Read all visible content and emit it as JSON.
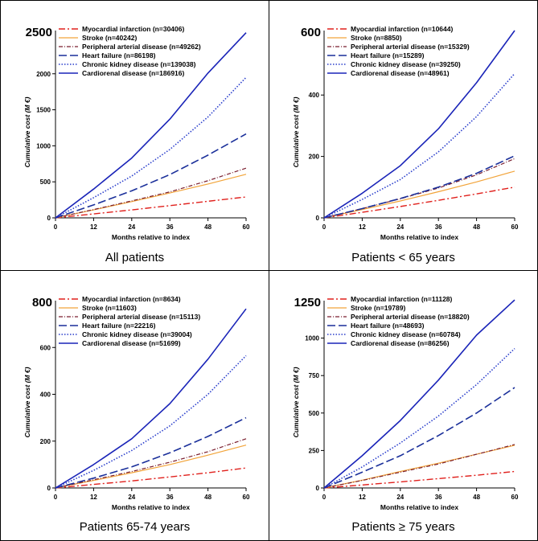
{
  "colors": {
    "myocardial": "#e0201c",
    "stroke": "#f2a43a",
    "peripheral": "#7a1e2e",
    "heart": "#1a2f9a",
    "ckd": "#2b3fcc",
    "cardiorenal": "#1a24b8"
  },
  "chart_data": [
    {
      "type": "line",
      "caption": "All patients",
      "xlabel": "Months relative to index",
      "ylabel": "Cumulative cost (M €)",
      "xlim": [
        0,
        60
      ],
      "x_ticks": [
        "0",
        "12",
        "24",
        "36",
        "48",
        "60"
      ],
      "ylim": [
        0,
        2600
      ],
      "y_ticks": [
        "0",
        "500",
        "1000",
        "1500",
        "2000"
      ],
      "y_top_label": "2500",
      "x": [
        0,
        12,
        24,
        36,
        48,
        60
      ],
      "series": [
        {
          "name": "Myocardial infarction (n=30406)",
          "values": [
            0,
            55,
            110,
            170,
            230,
            290
          ]
        },
        {
          "name": "Stroke (n=40242)",
          "values": [
            0,
            110,
            225,
            345,
            470,
            605
          ]
        },
        {
          "name": "Peripheral arterial disease (n=49262)",
          "values": [
            0,
            115,
            235,
            360,
            515,
            690
          ]
        },
        {
          "name": "Heart failure (n=86198)",
          "values": [
            0,
            180,
            375,
            600,
            870,
            1165
          ]
        },
        {
          "name": "Chronic kidney disease (n=139038)",
          "values": [
            0,
            280,
            580,
            950,
            1400,
            1950
          ]
        },
        {
          "name": "Cardiorenal disease (n=186916)",
          "values": [
            0,
            400,
            830,
            1370,
            2010,
            2570
          ]
        }
      ]
    },
    {
      "type": "line",
      "caption": "Patients < 65 years",
      "xlabel": "Months relative to index",
      "ylabel": "Cumulative cost (M €)",
      "xlim": [
        0,
        60
      ],
      "x_ticks": [
        "0",
        "12",
        "24",
        "36",
        "48",
        "60"
      ],
      "ylim": [
        0,
        610
      ],
      "y_ticks": [
        "0",
        "200",
        "400"
      ],
      "y_top_label": "600",
      "x": [
        0,
        12,
        24,
        36,
        48,
        60
      ],
      "series": [
        {
          "name": "Myocardial infarction (n=10644)",
          "values": [
            0,
            18,
            37,
            57,
            78,
            100
          ]
        },
        {
          "name": "Stroke (n=8850)",
          "values": [
            0,
            27,
            55,
            85,
            117,
            152
          ]
        },
        {
          "name": "Peripheral arterial disease (n=15329)",
          "values": [
            0,
            30,
            62,
            97,
            140,
            193
          ]
        },
        {
          "name": "Heart failure (n=15289)",
          "values": [
            0,
            30,
            63,
            100,
            145,
            202
          ]
        },
        {
          "name": "Chronic kidney disease (n=39250)",
          "values": [
            0,
            60,
            125,
            215,
            330,
            470
          ]
        },
        {
          "name": "Cardiorenal disease (n=48961)",
          "values": [
            0,
            80,
            170,
            290,
            440,
            610
          ]
        }
      ]
    },
    {
      "type": "line",
      "caption": "Patients 65-74 years",
      "xlabel": "Months relative to index",
      "ylabel": "Cumulative cost (M €)",
      "xlim": [
        0,
        60
      ],
      "x_ticks": [
        "0",
        "12",
        "24",
        "36",
        "48",
        "60"
      ],
      "ylim": [
        0,
        800
      ],
      "y_ticks": [
        "0",
        "200",
        "400",
        "600"
      ],
      "y_top_label": "800",
      "x": [
        0,
        12,
        24,
        36,
        48,
        60
      ],
      "series": [
        {
          "name": "Myocardial infarction (n=8634)",
          "values": [
            0,
            15,
            30,
            47,
            65,
            85
          ]
        },
        {
          "name": "Stroke (n=11603)",
          "values": [
            0,
            32,
            65,
            100,
            140,
            183
          ]
        },
        {
          "name": "Peripheral arterial disease (n=15113)",
          "values": [
            0,
            35,
            70,
            110,
            155,
            210
          ]
        },
        {
          "name": "Heart failure (n=22216)",
          "values": [
            0,
            42,
            90,
            150,
            220,
            300
          ]
        },
        {
          "name": "Chronic kidney disease (n=39004)",
          "values": [
            0,
            75,
            160,
            265,
            400,
            565
          ]
        },
        {
          "name": "Cardiorenal disease (n=51699)",
          "values": [
            0,
            100,
            210,
            360,
            550,
            765
          ]
        }
      ]
    },
    {
      "type": "line",
      "caption": "Patients ≥ 75 years",
      "xlabel": "Months relative to index",
      "ylabel": "Cumulative cost (M €)",
      "xlim": [
        0,
        60
      ],
      "x_ticks": [
        "0",
        "12",
        "24",
        "36",
        "48",
        "60"
      ],
      "ylim": [
        0,
        1250
      ],
      "y_ticks": [
        "0",
        "250",
        "500",
        "750",
        "1000"
      ],
      "y_top_label": "1250",
      "x": [
        0,
        12,
        24,
        36,
        48,
        60
      ],
      "series": [
        {
          "name": "Myocardial infarction (n=11128)",
          "values": [
            0,
            20,
            40,
            62,
            85,
            110
          ]
        },
        {
          "name": "Stroke (n=19789)",
          "values": [
            0,
            52,
            110,
            165,
            225,
            285
          ]
        },
        {
          "name": "Peripheral arterial disease (n=18820)",
          "values": [
            0,
            50,
            105,
            160,
            225,
            290
          ]
        },
        {
          "name": "Heart failure (n=48693)",
          "values": [
            0,
            105,
            215,
            350,
            500,
            670
          ]
        },
        {
          "name": "Chronic kidney disease (n=60784)",
          "values": [
            0,
            140,
            300,
            480,
            690,
            930
          ]
        },
        {
          "name": "Cardiorenal disease (n=86256)",
          "values": [
            0,
            215,
            450,
            720,
            1020,
            1255
          ]
        }
      ]
    }
  ]
}
